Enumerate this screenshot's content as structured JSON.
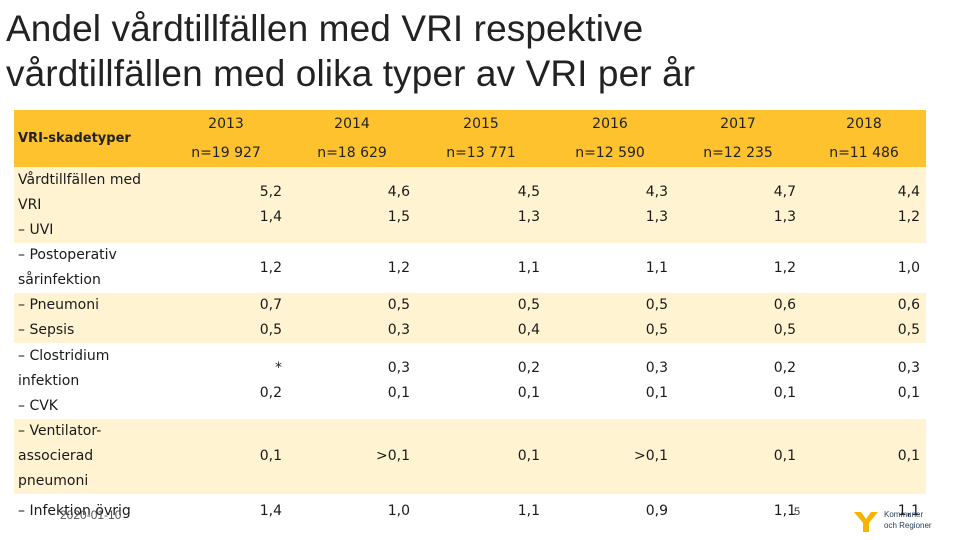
{
  "title": {
    "line1": "Andel vårdtillfällen med VRI respektive",
    "line2": "vårdtillfällen med olika typer av VRI per år"
  },
  "table": {
    "row_header": "VRI-skadetyper",
    "years": [
      {
        "year": "2013",
        "n": "n=19 927"
      },
      {
        "year": "2014",
        "n": "n=18 629"
      },
      {
        "year": "2015",
        "n": "n=13 771"
      },
      {
        "year": "2016",
        "n": "n=12 590"
      },
      {
        "year": "2017",
        "n": "n=12 235"
      },
      {
        "year": "2018",
        "n": "n=11 486"
      }
    ],
    "rows": [
      {
        "lines": [
          "Vårdtillfällen med",
          "VRI",
          "– UVI"
        ],
        "values": [
          [
            "5,2",
            "1,4"
          ],
          [
            "4,6",
            "1,5"
          ],
          [
            "4,5",
            "1,3"
          ],
          [
            "4,3",
            "1,3"
          ],
          [
            "4,7",
            "1,3"
          ],
          [
            "4,4",
            "1,2"
          ]
        ]
      },
      {
        "lines": [
          "– Postoperativ",
          "sårinfektion"
        ],
        "values": [
          [
            "1,2"
          ],
          [
            "1,2"
          ],
          [
            "1,1"
          ],
          [
            "1,1"
          ],
          [
            "1,2"
          ],
          [
            "1,0"
          ]
        ]
      },
      {
        "lines": [
          "– Pneumoni",
          "– Sepsis"
        ],
        "values": [
          [
            "0,7",
            "0,5"
          ],
          [
            "0,5",
            "0,3"
          ],
          [
            "0,5",
            "0,4"
          ],
          [
            "0,5",
            "0,5"
          ],
          [
            "0,6",
            "0,5"
          ],
          [
            "0,6",
            "0,5"
          ]
        ]
      },
      {
        "lines": [
          "– Clostridium",
          "infektion",
          "– CVK"
        ],
        "values": [
          [
            "*",
            "0,2"
          ],
          [
            "0,3",
            "0,1"
          ],
          [
            "0,2",
            "0,1"
          ],
          [
            "0,3",
            "0,1"
          ],
          [
            "0,2",
            "0,1"
          ],
          [
            "0,3",
            "0,1"
          ]
        ]
      },
      {
        "lines": [
          "– Ventilator-",
          "associerad",
          "pneumoni"
        ],
        "values": [
          [
            "0,1"
          ],
          [
            ">0,1"
          ],
          [
            "0,1"
          ],
          [
            ">0,1"
          ],
          [
            "0,1"
          ],
          [
            "0,1"
          ]
        ]
      },
      {
        "lines": [
          "– Infektion övrig"
        ],
        "values": [
          [
            "1,4"
          ],
          [
            "1,0"
          ],
          [
            "1,1"
          ],
          [
            "0,9"
          ],
          [
            "1,1"
          ],
          [
            "1,1"
          ]
        ]
      }
    ]
  },
  "footer": {
    "date": "2020-01-10",
    "page_number": "5",
    "logo_line1": "Kommuner",
    "logo_line2": "och Regioner"
  },
  "colors": {
    "header_fill": "#fdc22e",
    "stripe_fill": "#fff3d2",
    "logo_mark": "#f6b400"
  }
}
